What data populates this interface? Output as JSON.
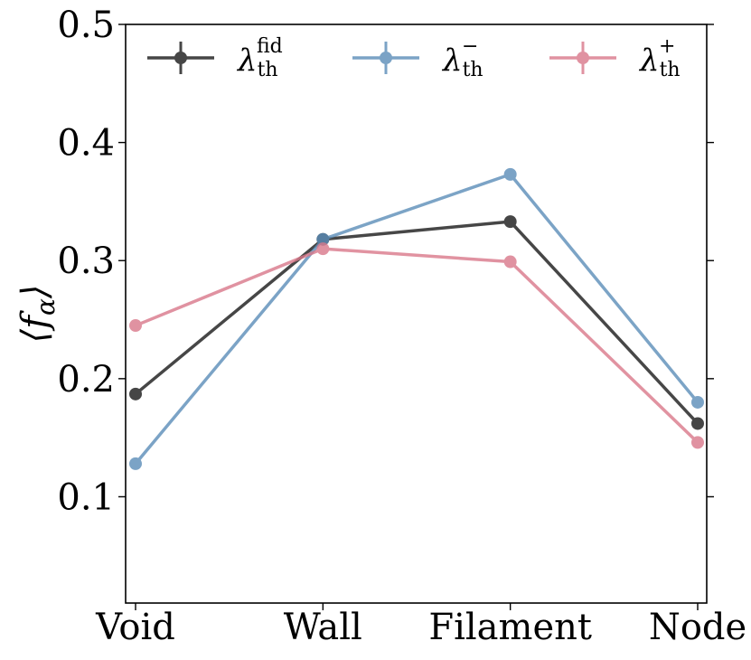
{
  "chart_data": {
    "type": "line",
    "title": "",
    "xlabel": "",
    "ylabel": "⟨f_α⟩",
    "ylabel_parts": {
      "open": "⟨",
      "var": "f",
      "sub": "α",
      "close": "⟩"
    },
    "categories": [
      "Void",
      "Wall",
      "Filament",
      "Node"
    ],
    "ylim": [
      0.01,
      0.5
    ],
    "yticks": [
      0.1,
      0.2,
      0.3,
      0.4,
      0.5
    ],
    "ytick_labels": [
      "0.1",
      "0.2",
      "0.3",
      "0.4",
      "0.5"
    ],
    "grid": false,
    "legend_position": "top",
    "series": [
      {
        "name": "λ_th^fid",
        "symbol": "λ",
        "sub": "th",
        "sup": "fid",
        "color": "#333333",
        "opacity": 0.9,
        "values": [
          0.187,
          0.318,
          0.333,
          0.162
        ]
      },
      {
        "name": "λ_th^-",
        "symbol": "λ",
        "sub": "th",
        "sup": "−",
        "color": "#5b8db8",
        "opacity": 0.8,
        "values": [
          0.128,
          0.318,
          0.373,
          0.18
        ]
      },
      {
        "name": "λ_th^+",
        "symbol": "λ",
        "sub": "th",
        "sup": "+",
        "color": "#d9788a",
        "opacity": 0.8,
        "values": [
          0.245,
          0.31,
          0.299,
          0.146
        ]
      }
    ]
  }
}
